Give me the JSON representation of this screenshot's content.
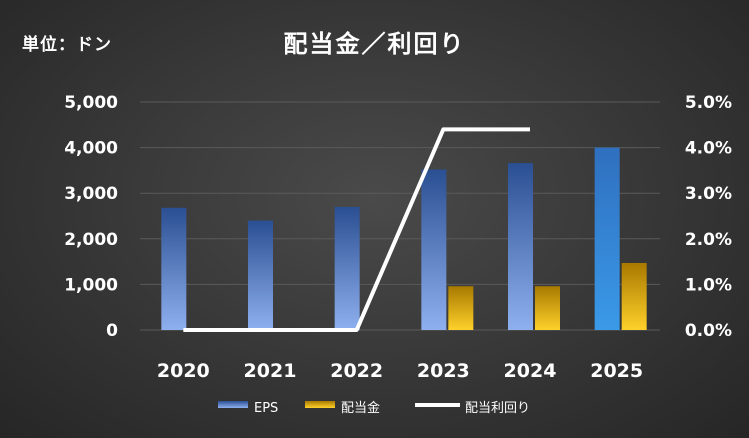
{
  "unit_label": "単位：ドン",
  "chart_data": {
    "type": "bar",
    "title": "配当金／利回り",
    "categories": [
      "2020",
      "2021",
      "2022",
      "2023",
      "2024",
      "2025"
    ],
    "series": [
      {
        "name": "EPS",
        "kind": "bar",
        "axis": "left",
        "values": [
          2680,
          2400,
          2700,
          3520,
          3660,
          4000
        ]
      },
      {
        "name": "配当金",
        "kind": "bar",
        "axis": "left",
        "values": [
          0,
          0,
          0,
          960,
          960,
          1470
        ]
      },
      {
        "name": "配当利回り",
        "kind": "line",
        "axis": "right",
        "values": [
          0.0,
          0.0,
          0.0,
          4.4,
          4.4,
          null
        ]
      }
    ],
    "y_left": {
      "min": 0,
      "max": 5000,
      "ticks": [
        "0",
        "1,000",
        "2,000",
        "3,000",
        "4,000",
        "5,000"
      ]
    },
    "y_right": {
      "min": 0,
      "max": 5,
      "ticks": [
        "0.0%",
        "1.0%",
        "2.0%",
        "3.0%",
        "4.0%",
        "5.0%"
      ]
    },
    "grid": true,
    "legend_position": "bottom",
    "colors": {
      "eps": "#4f7fd0",
      "dividend": "#e0a800",
      "yield": "#ffffff",
      "grid": "#5a5a5a"
    }
  }
}
